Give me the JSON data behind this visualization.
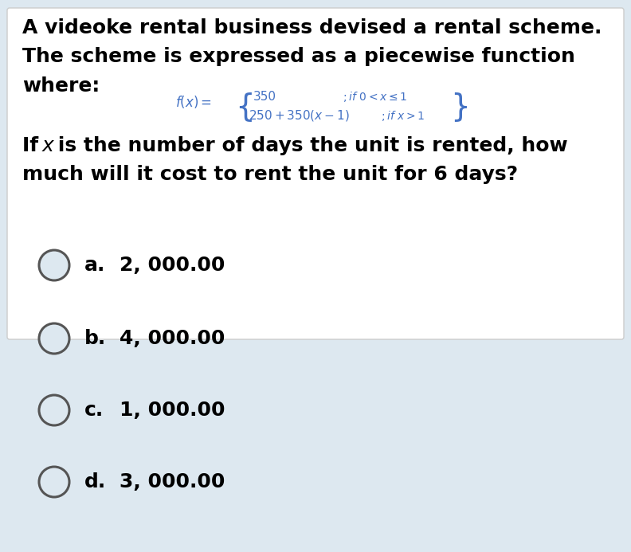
{
  "bg_color": "#dde8f0",
  "text_color": "#000000",
  "formula_color": "#4472c4",
  "line1": "A videoke rental business devised a rental scheme.",
  "line2": "The scheme is expressed as a piecewise function",
  "line3": "where:",
  "q_line1": "If  is the number of days the unit is rented, how",
  "q_line2": "much will it cost to rent the unit for 6 days?",
  "choice_letters": [
    "a.",
    "b.",
    "c.",
    "d."
  ],
  "choice_amounts": [
    "2, 000.00",
    "4, 000.00",
    "1, 000.00",
    "3, 000.00"
  ],
  "figsize": [
    7.92,
    6.93
  ],
  "dpi": 100
}
